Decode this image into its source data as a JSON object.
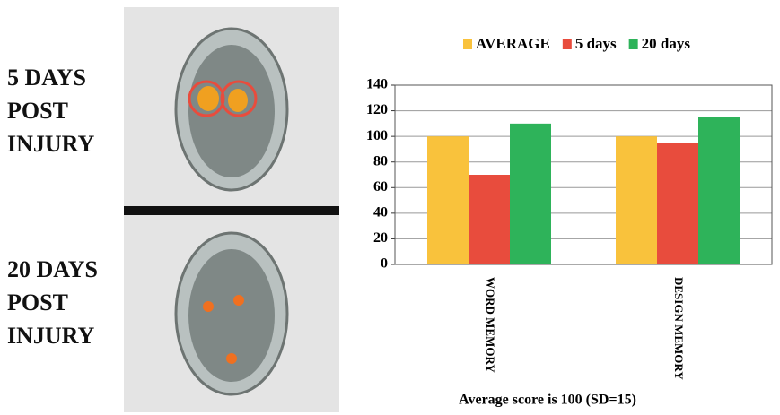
{
  "chart_data": {
    "type": "bar",
    "annotations": [
      "5 DAYS POST INJURY",
      "20 DAYS POST INJURY"
    ],
    "xlabel": "Average score is 100 (SD=15)",
    "categories": [
      "WORD MEMORY",
      "DESIGN MEMORY"
    ],
    "series": [
      {
        "name": "AVERAGE",
        "color": "#f9c23c",
        "values": [
          100,
          100
        ]
      },
      {
        "name": "5 days",
        "color": "#e84c3d",
        "values": [
          70,
          95
        ]
      },
      {
        "name": "20 days",
        "color": "#2eb35a",
        "values": [
          110,
          115
        ]
      }
    ],
    "ylim": [
      0,
      140
    ],
    "yticks": [
      0,
      20,
      40,
      60,
      80,
      100,
      120,
      140
    ],
    "grid": true,
    "legend": "top"
  }
}
